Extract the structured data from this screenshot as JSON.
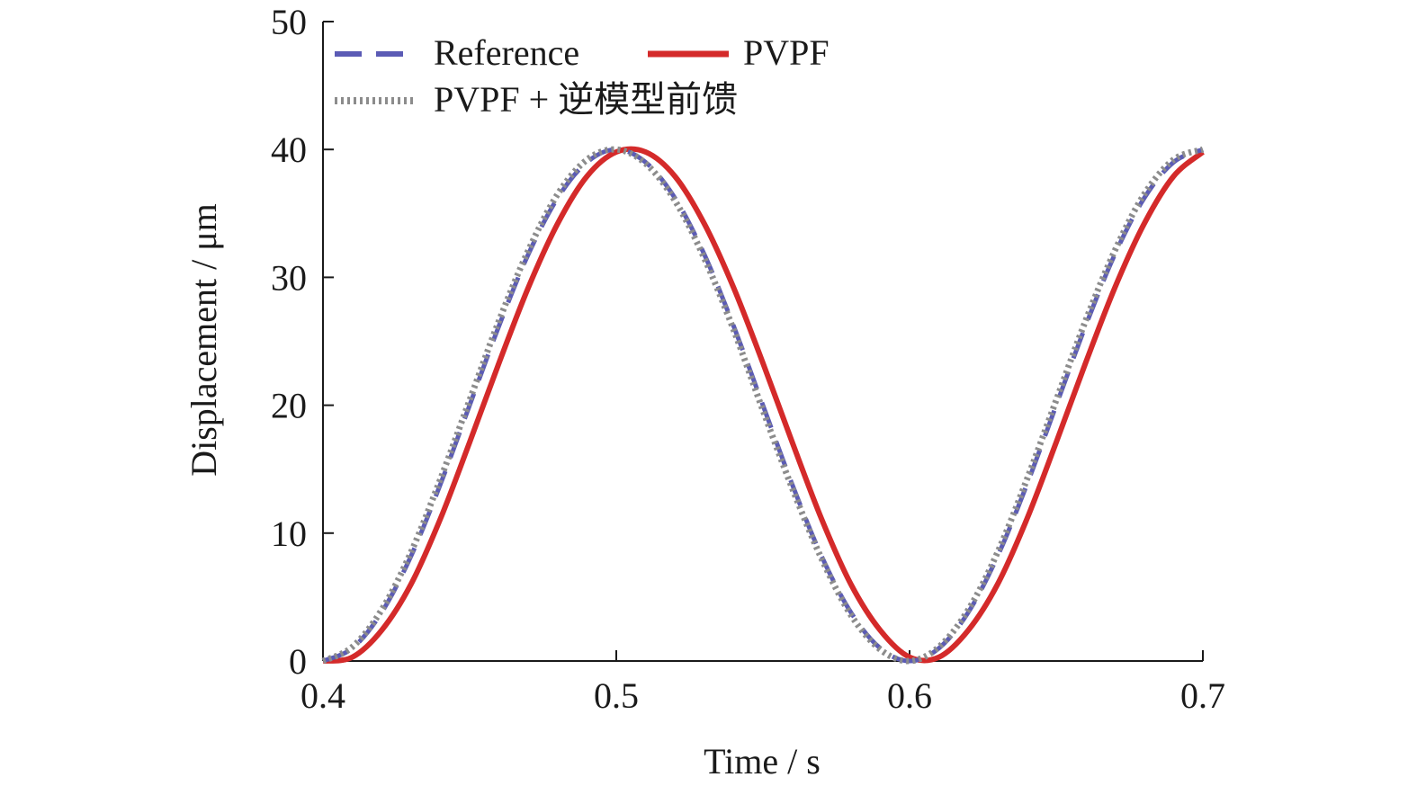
{
  "chart_data": {
    "type": "line",
    "title": "",
    "xlabel": "Time / s",
    "ylabel": "Displacement / μm",
    "xlim": [
      0.4,
      0.7
    ],
    "ylim": [
      0,
      50
    ],
    "x_ticks": [
      0.4,
      0.5,
      0.6,
      0.7
    ],
    "x_tick_labels": [
      "0.4",
      "0.5",
      "0.6",
      "0.7"
    ],
    "y_ticks": [
      0,
      10,
      20,
      30,
      40,
      50
    ],
    "y_tick_labels": [
      "0",
      "10",
      "20",
      "30",
      "40",
      "50"
    ],
    "grid": false,
    "legend_position": "top-left",
    "x": [
      0.4,
      0.41,
      0.42,
      0.43,
      0.44,
      0.45,
      0.46,
      0.47,
      0.48,
      0.49,
      0.5,
      0.51,
      0.52,
      0.53,
      0.54,
      0.55,
      0.56,
      0.57,
      0.58,
      0.59,
      0.6,
      0.61,
      0.62,
      0.63,
      0.64,
      0.65,
      0.66,
      0.67,
      0.68,
      0.69,
      0.7
    ],
    "series": [
      {
        "name": "Reference",
        "color": "#5b5bb5",
        "style": "dashed",
        "values": [
          0.0,
          1.0,
          3.8,
          8.2,
          13.8,
          20.0,
          26.2,
          31.8,
          36.2,
          39.0,
          40.0,
          39.0,
          36.2,
          31.8,
          26.2,
          20.0,
          13.8,
          8.2,
          3.8,
          1.0,
          0.0,
          1.0,
          3.8,
          8.2,
          13.8,
          20.0,
          26.2,
          31.8,
          36.2,
          39.0,
          40.0
        ]
      },
      {
        "name": "PVPF",
        "color": "#d42a2a",
        "style": "solid",
        "values": [
          0.0,
          0.3,
          2.4,
          6.0,
          11.1,
          17.1,
          23.3,
          29.2,
          34.2,
          37.9,
          39.8,
          39.8,
          37.9,
          34.2,
          29.2,
          23.3,
          17.1,
          11.1,
          6.0,
          2.4,
          0.3,
          0.3,
          2.4,
          6.0,
          11.1,
          17.1,
          23.3,
          29.2,
          34.2,
          37.9,
          39.8
        ]
      },
      {
        "name": "PVPF + 逆模型前馈",
        "color": "#8c8c8c",
        "style": "dotted",
        "values": [
          0.0,
          1.1,
          4.0,
          8.5,
          14.2,
          20.4,
          26.6,
          32.1,
          36.5,
          39.2,
          40.0,
          38.9,
          36.0,
          31.5,
          25.9,
          19.6,
          13.5,
          8.0,
          3.6,
          0.9,
          0.0,
          1.1,
          4.0,
          8.5,
          14.2,
          20.4,
          26.6,
          32.1,
          36.5,
          39.2,
          40.0
        ]
      }
    ]
  }
}
